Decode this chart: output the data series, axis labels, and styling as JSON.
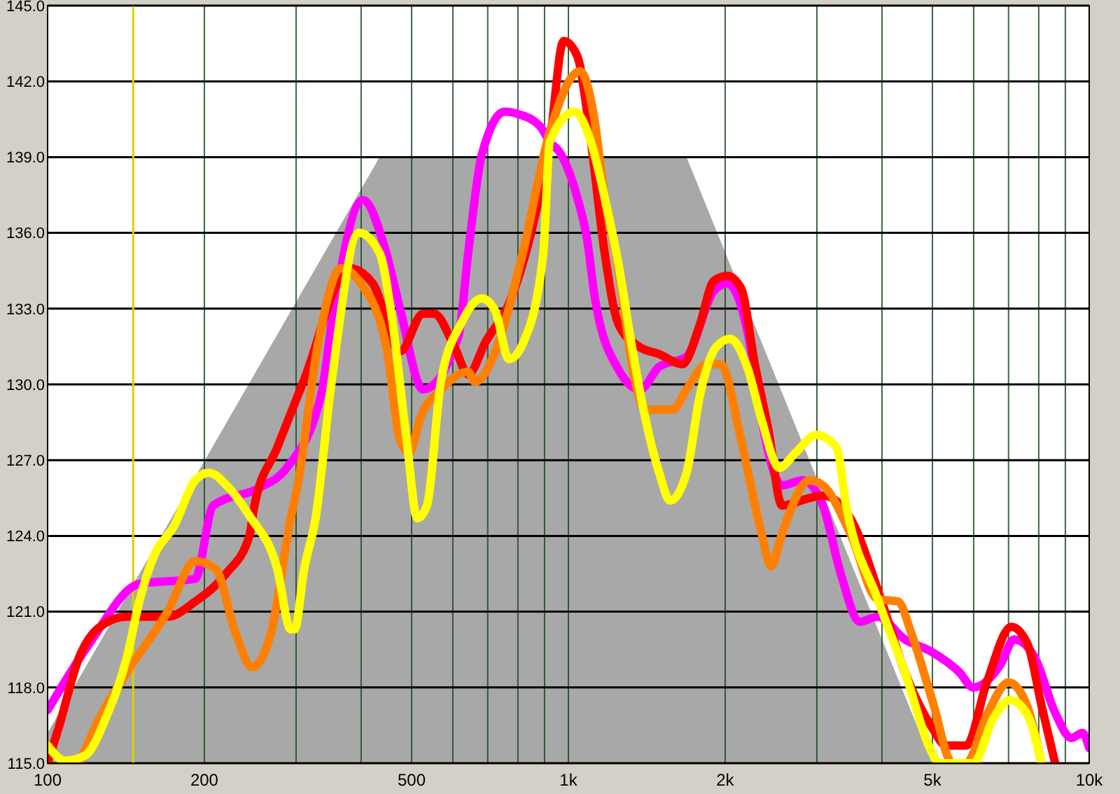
{
  "chart_data": {
    "type": "line",
    "log": "x",
    "grid": true,
    "xlim": [
      100,
      10000
    ],
    "ylim": [
      115,
      145
    ],
    "xticks": [
      100,
      200,
      {
        "value": 300,
        "label": null
      },
      {
        "value": 400,
        "label": null
      },
      500,
      {
        "value": 600,
        "label": null
      },
      {
        "value": 700,
        "label": null
      },
      {
        "value": 800,
        "label": null
      },
      {
        "value": 900,
        "label": null
      },
      {
        "value": 1000,
        "label": "1k"
      },
      {
        "value": 2000,
        "label": "2k"
      },
      {
        "value": 3000,
        "label": null
      },
      {
        "value": 4000,
        "label": null
      },
      {
        "value": 5000,
        "label": "5k"
      },
      {
        "value": 6000,
        "label": null
      },
      {
        "value": 7000,
        "label": null
      },
      {
        "value": 8000,
        "label": null
      },
      {
        "value": 9000,
        "label": null
      },
      {
        "value": 10000,
        "label": "10k"
      }
    ],
    "yticks": [
      {
        "value": 115,
        "label": "115.0"
      },
      {
        "value": 118,
        "label": "118.0"
      },
      {
        "value": 121,
        "label": "121.0"
      },
      {
        "value": 124,
        "label": "124.0"
      },
      {
        "value": 127,
        "label": "127.0"
      },
      {
        "value": 130,
        "label": "130.0"
      },
      {
        "value": 133,
        "label": "133.0"
      },
      {
        "value": 136,
        "label": "136.0"
      },
      {
        "value": 139,
        "label": "139.0"
      },
      {
        "value": 142,
        "label": "142.0"
      },
      {
        "value": 145,
        "label": "145.0"
      }
    ],
    "ref_lines": [
      {
        "axis": "x",
        "value": 146,
        "color": "#e0d000"
      }
    ],
    "series": [
      {
        "type": "area",
        "color": "#a8a8a8",
        "x": [
          100,
          434,
          1686,
          4995
        ],
        "values": [
          116.2,
          139,
          139,
          115
        ]
      },
      {
        "color": "#ff00ff",
        "x": [
          100,
          120,
          150,
          192,
          208,
          255,
          288,
          336,
          351,
          403,
          447,
          475,
          526,
          615,
          642,
          682,
          755,
          802,
          884,
          921,
          962,
          1040,
          1085,
          1125,
          1247,
          1373,
          1494,
          1686,
          1902,
          2020,
          2212,
          2349,
          2572,
          2815,
          3082,
          3334,
          3628,
          3924,
          4428,
          4995,
          5636,
          5986,
          6753,
          7176,
          7856,
          8601,
          9246,
          9703,
          10000
        ],
        "values": [
          117.1,
          119.7,
          122.1,
          122.3,
          125.2,
          125.9,
          126.7,
          129.7,
          132.4,
          137.3,
          135.2,
          133,
          129.8,
          131.9,
          135.2,
          139.1,
          140.8,
          140.7,
          140.2,
          139.6,
          139.2,
          137.4,
          135.8,
          133.4,
          130.6,
          129.8,
          130.7,
          131.1,
          133.7,
          134,
          132,
          128.6,
          126,
          126.2,
          125.2,
          122.5,
          120.6,
          120.8,
          119.9,
          119.4,
          118.6,
          118,
          118.9,
          119.9,
          119.2,
          117,
          116,
          116.2,
          115.6
        ]
      },
      {
        "color": "#ff0000",
        "x": [
          100,
          105,
          115,
          126,
          142,
          170,
          192,
          220,
          244,
          249,
          276,
          311,
          380,
          421,
          475,
          526,
          552,
          604,
          642,
          694,
          769,
          868,
          921,
          979,
          1040,
          1105,
          1174,
          1247,
          1365,
          1494,
          1655,
          1790,
          1902,
          2020,
          2146,
          2280,
          2421,
          2572,
          2901,
          3082,
          3478,
          3996,
          4428,
          4995,
          5306,
          5807,
          6358,
          7090,
          7621,
          8095,
          8601
        ],
        "values": [
          115,
          116.4,
          119.2,
          120.4,
          120.8,
          120.8,
          121.4,
          122.5,
          124,
          125.1,
          127.5,
          130.2,
          134.6,
          134,
          131.3,
          132.8,
          132.8,
          131.5,
          130.4,
          131.7,
          133.2,
          136.9,
          139.6,
          143.6,
          143,
          139.6,
          135.2,
          132.4,
          131.5,
          131.2,
          130.8,
          132.4,
          134.1,
          134.3,
          133.8,
          130.8,
          128.2,
          125.2,
          125.5,
          125.6,
          124.7,
          121.4,
          118.6,
          116.4,
          115.7,
          115.7,
          118.2,
          120.4,
          119.7,
          117.3,
          115
        ]
      },
      {
        "color": "#ff8000",
        "x": [
          115,
          126,
          142,
          170,
          192,
          210,
          230,
          247,
          268,
          293,
          302,
          330,
          366,
          396,
          447,
          475,
          495,
          520,
          569,
          642,
          661,
          724,
          817,
          921,
          1053,
          1118,
          1174,
          1247,
          1340,
          1407,
          1587,
          1686,
          1845,
          1960,
          2146,
          2349,
          2450,
          2572,
          2901,
          3082,
          3478,
          3924,
          4296,
          4563,
          4995,
          5468,
          5807,
          6358,
          7004,
          7621,
          8095
        ],
        "values": [
          115,
          116.8,
          118.6,
          121,
          123,
          122.7,
          120.1,
          118.8,
          120.1,
          124.7,
          126,
          131.5,
          134.6,
          134.1,
          131.5,
          127.8,
          127.3,
          128.7,
          129.8,
          130.5,
          130.1,
          131.3,
          135.2,
          140,
          142.4,
          140.7,
          137.4,
          134.6,
          130.2,
          129,
          129,
          129.8,
          130.8,
          130.8,
          127.8,
          124.1,
          122.8,
          124.1,
          126.2,
          126,
          124.1,
          121.5,
          121.4,
          120.1,
          117.5,
          115,
          115,
          116.9,
          118.2,
          117.2,
          115
        ]
      },
      {
        "color": "#ffff00",
        "x": [
          100,
          108,
          118,
          130,
          142,
          150,
          160,
          175,
          192,
          204,
          223,
          244,
          276,
          293,
          298,
          311,
          327,
          351,
          396,
          434,
          460,
          489,
          513,
          535,
          569,
          622,
          682,
          724,
          769,
          817,
          895,
          921,
          1027,
          1105,
          1174,
          1247,
          1324,
          1407,
          1494,
          1568,
          1686,
          1790,
          1925,
          2045,
          2212,
          2349,
          2541,
          2732,
          2990,
          3273,
          3415,
          3924,
          4428,
          4995,
          5147,
          5986,
          6553,
          7047,
          7621,
          8095
        ],
        "values": [
          115.7,
          115.1,
          115.3,
          116.9,
          119.2,
          121.4,
          123.2,
          124.4,
          126.2,
          126.5,
          125.9,
          124.8,
          122.7,
          120.3,
          120.3,
          122.7,
          124.7,
          130.1,
          136,
          135.2,
          132.4,
          127.8,
          124.7,
          125.2,
          130.1,
          132.4,
          133.4,
          132.9,
          131,
          131.6,
          135.2,
          139.6,
          140.8,
          139.6,
          137.4,
          134.8,
          131.5,
          128.6,
          126.5,
          125.4,
          126.5,
          129.6,
          131.5,
          131.8,
          130.6,
          128.6,
          126.7,
          127.3,
          128,
          127.5,
          125.2,
          121.5,
          118.6,
          115.4,
          115,
          115,
          116.8,
          117.5,
          116.9,
          115
        ]
      }
    ]
  }
}
